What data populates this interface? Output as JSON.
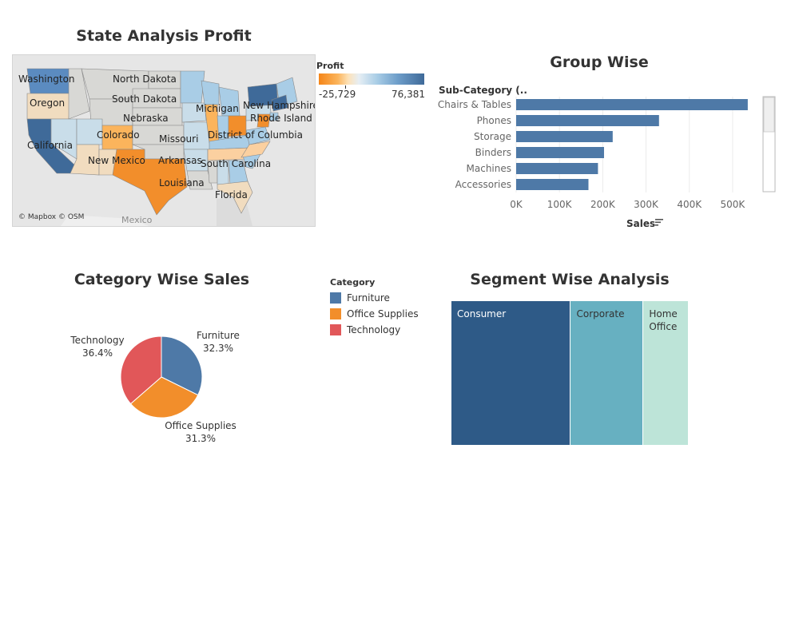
{
  "map": {
    "title": "State Analysis Profit",
    "credit": "© Mapbox © OSM",
    "country_label": "Mexico",
    "states": [
      {
        "name": "Washington",
        "color": "#5b8bc0"
      },
      {
        "name": "Oregon",
        "color": "#f1dcbf"
      },
      {
        "name": "California",
        "color": "#3f6a99"
      },
      {
        "name": "North Dakota",
        "color": "#d8d8d5"
      },
      {
        "name": "South Dakota",
        "color": "#d8d8d5"
      },
      {
        "name": "Nebraska",
        "color": "#d8d8d5"
      },
      {
        "name": "Colorado",
        "color": "#fbb45c"
      },
      {
        "name": "New Mexico",
        "color": "#f1dcbf"
      },
      {
        "name": "Missouri",
        "color": "#c9dde9"
      },
      {
        "name": "Arkansas",
        "color": "#c9dde9"
      },
      {
        "name": "Louisiana",
        "color": "#d8d8d5"
      },
      {
        "name": "Michigan",
        "color": "#a9cde6"
      },
      {
        "name": "New Hampshire",
        "color": "#3f6a99"
      },
      {
        "name": "Rhode Island",
        "color": "#a9cde6"
      },
      {
        "name": "District of Columbia",
        "color": "#a9cde6"
      },
      {
        "name": "South Carolina",
        "color": "#a9cde6"
      },
      {
        "name": "Florida",
        "color": "#f1dcbf"
      }
    ],
    "legend": {
      "title": "Profit",
      "min_label": "-25,729",
      "max_label": "76,381",
      "min_value": -25729,
      "max_value": 76381
    }
  },
  "chart_data": [
    {
      "type": "bar",
      "orientation": "horizontal",
      "title": "Group Wise",
      "ylabel": "Sub-Category (..",
      "xlabel": "Sales",
      "categories": [
        "Chairs & Tables",
        "Phones",
        "Storage",
        "Binders",
        "Machines",
        "Accessories"
      ],
      "values": [
        535000,
        330000,
        223000,
        203000,
        189000,
        167000
      ],
      "xlim": [
        0,
        550000
      ],
      "xticks": [
        "0K",
        "100K",
        "200K",
        "300K",
        "400K",
        "500K"
      ],
      "xtick_values": [
        0,
        100000,
        200000,
        300000,
        400000,
        500000
      ],
      "color": "#4e79a7",
      "grid": true
    },
    {
      "type": "pie",
      "title": "Category Wise Sales",
      "legend_title": "Category",
      "labels": [
        "Furniture",
        "Office Supplies",
        "Technology"
      ],
      "values": [
        32.3,
        31.3,
        36.4
      ],
      "value_labels": [
        "32.3%",
        "31.3%",
        "36.4%"
      ],
      "colors": [
        "#4e79a7",
        "#f28e2b",
        "#e15759"
      ],
      "legend_placement": "right"
    },
    {
      "type": "treemap",
      "title": "Segment Wise Analysis",
      "labels": [
        "Consumer",
        "Corporate",
        "Home Office"
      ],
      "values": [
        50.5,
        30.7,
        18.8
      ],
      "colors": [
        "#2e5a87",
        "#67b0c1",
        "#bde4d8"
      ],
      "text_colors": [
        "#ffffff",
        "#333333",
        "#333333"
      ]
    }
  ]
}
